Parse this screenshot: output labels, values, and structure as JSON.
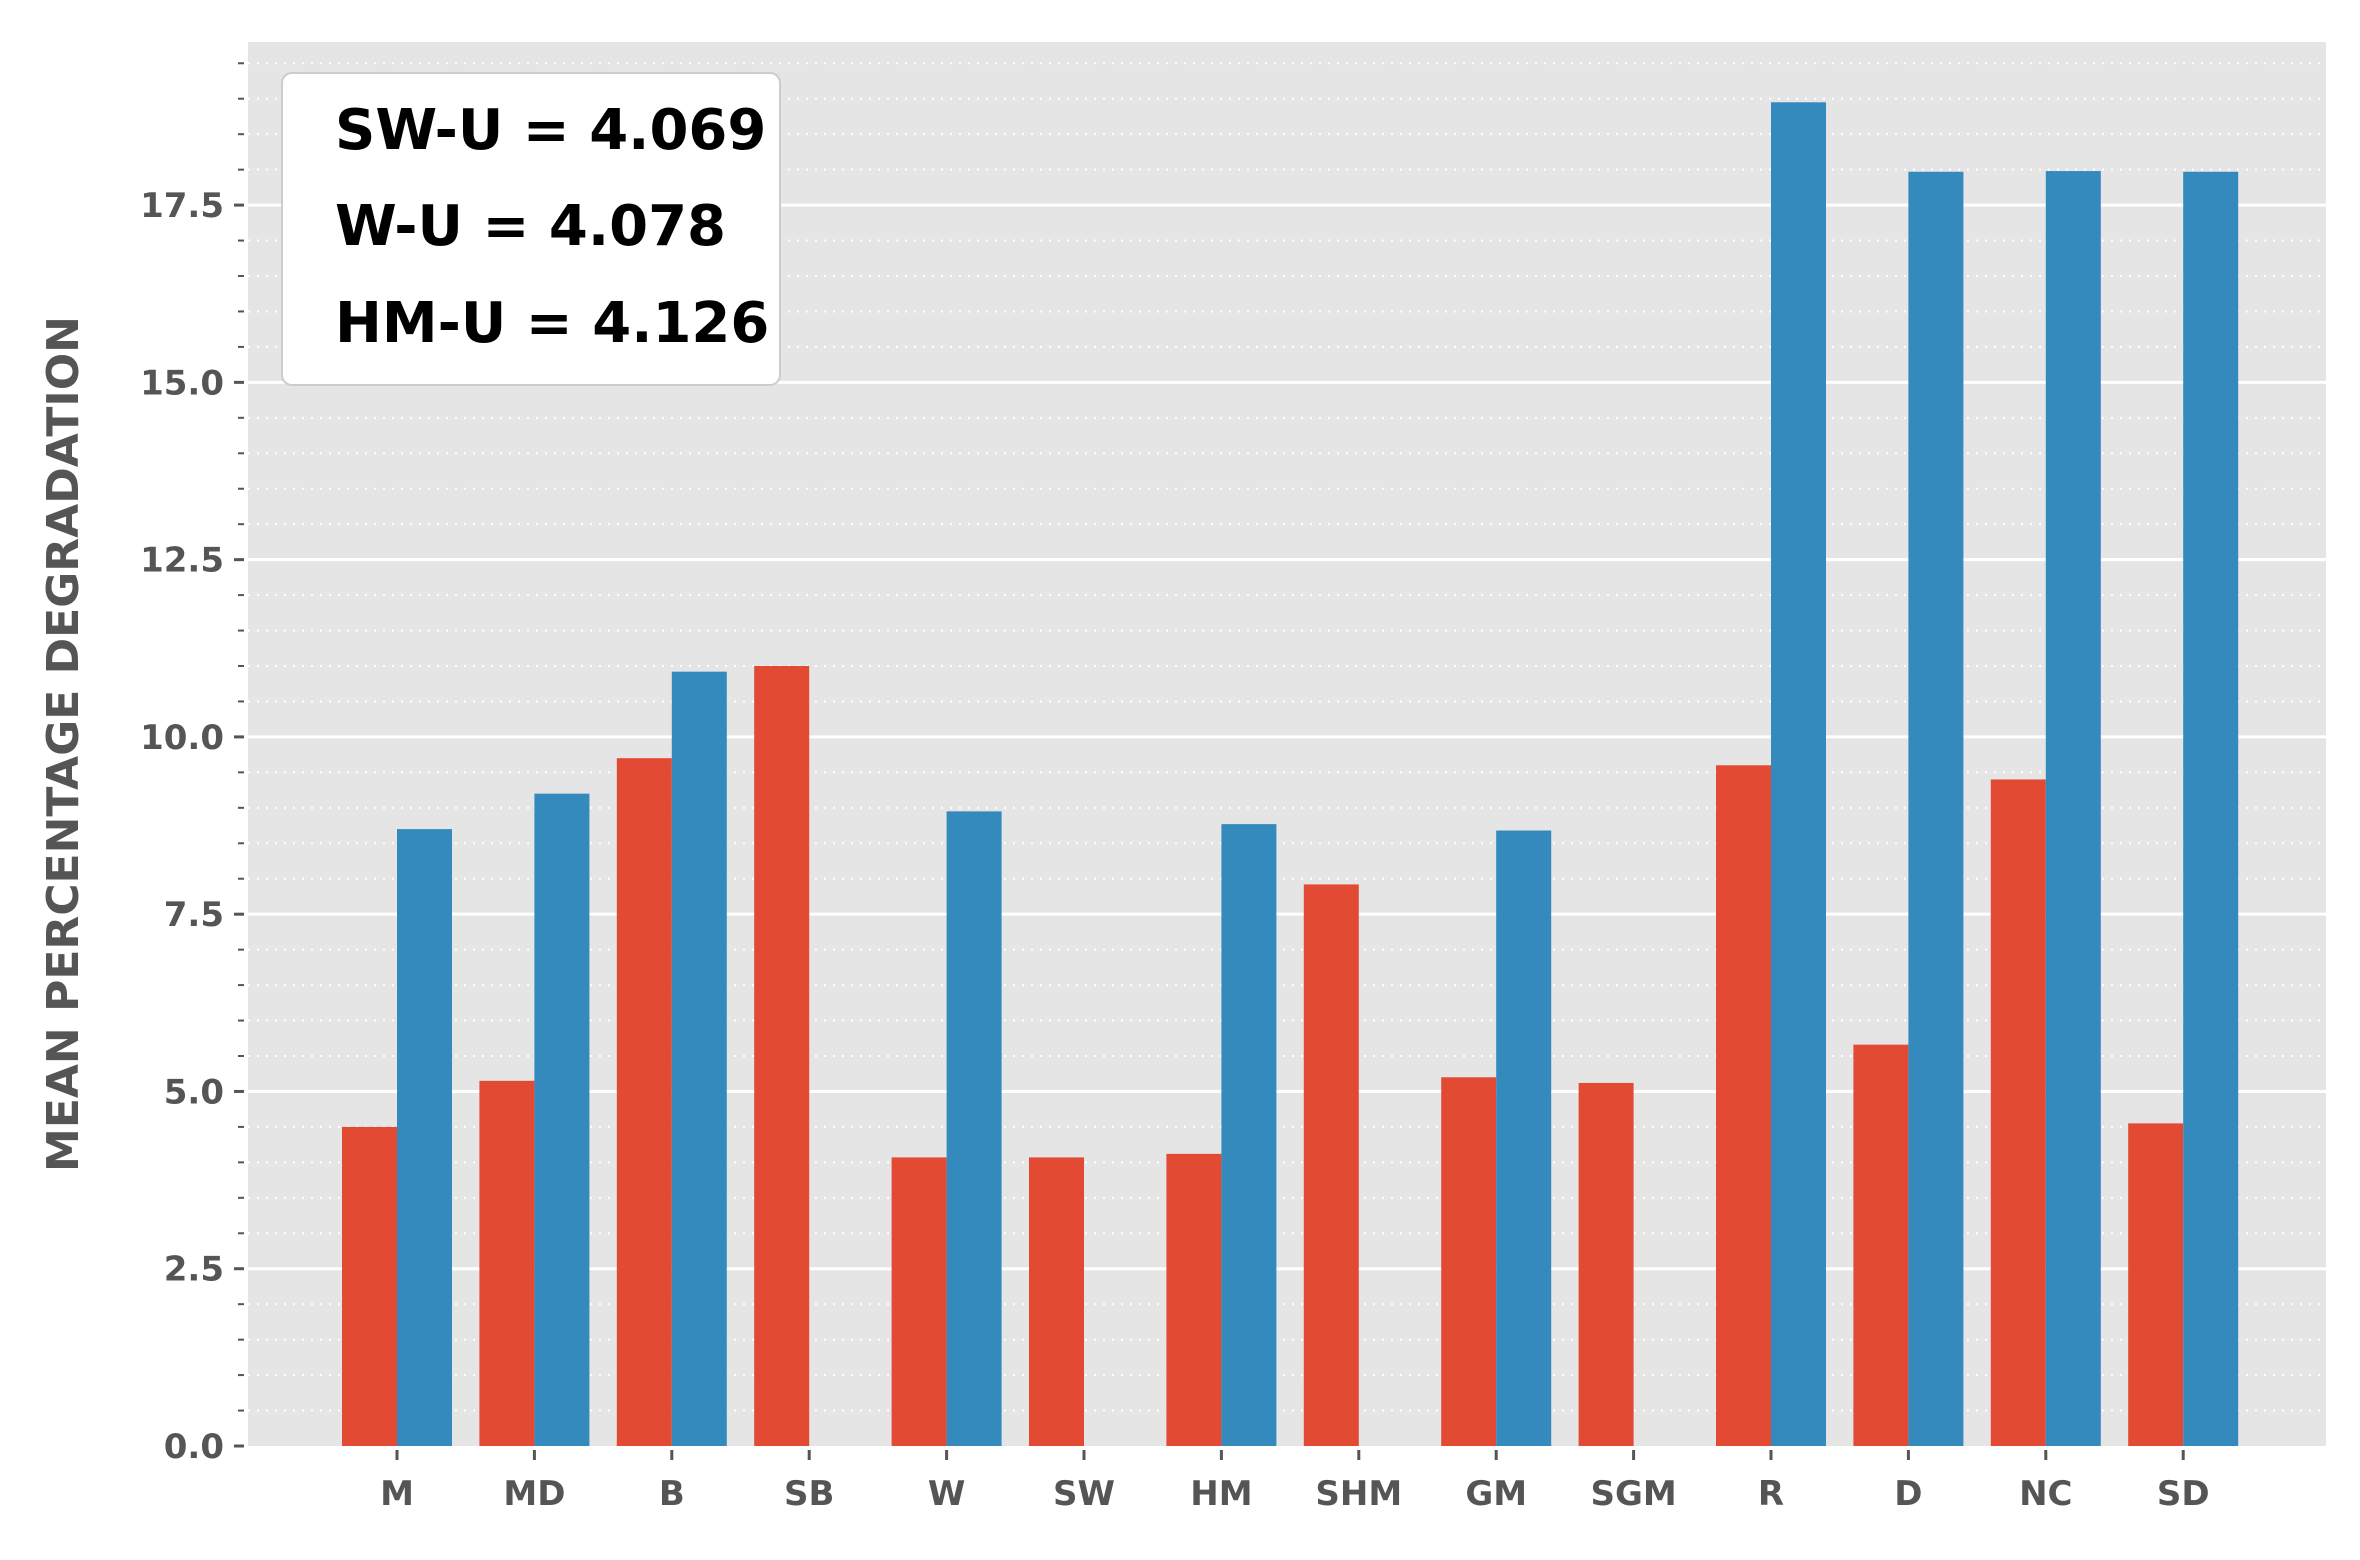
{
  "chart_data": {
    "type": "bar",
    "title": "",
    "xlabel": "",
    "ylabel": "MEAN PERCENTAGE DEGRADATION",
    "ylim": [
      0,
      19.8
    ],
    "y_ticks": [
      "0.0",
      "2.5",
      "5.0",
      "7.5",
      "10.0",
      "12.5",
      "15.0",
      "17.5"
    ],
    "grid": true,
    "categories": [
      "M",
      "MD",
      "B",
      "SB",
      "W",
      "SW",
      "HM",
      "SHM",
      "GM",
      "SGM",
      "R",
      "D",
      "NC",
      "SD"
    ],
    "series": [
      {
        "color": "#E24A33",
        "values": [
          4.5,
          5.15,
          9.7,
          11.0,
          4.07,
          4.07,
          4.12,
          7.92,
          5.2,
          5.12,
          9.6,
          5.66,
          9.4,
          4.55
        ]
      },
      {
        "color": "#348ABD",
        "values": [
          8.7,
          9.2,
          10.92,
          null,
          8.95,
          null,
          8.77,
          null,
          8.68,
          null,
          18.95,
          17.97,
          17.98,
          17.97
        ]
      }
    ],
    "annotation_box": {
      "placement": "top-left",
      "lines": [
        "SW-U = 4.069",
        "W-U = 4.078",
        "HM-U = 4.126"
      ]
    },
    "colors": {
      "plot_background": "#E5E5E5",
      "grid_major": "#FFFFFF",
      "tick_text": "#555555"
    }
  }
}
